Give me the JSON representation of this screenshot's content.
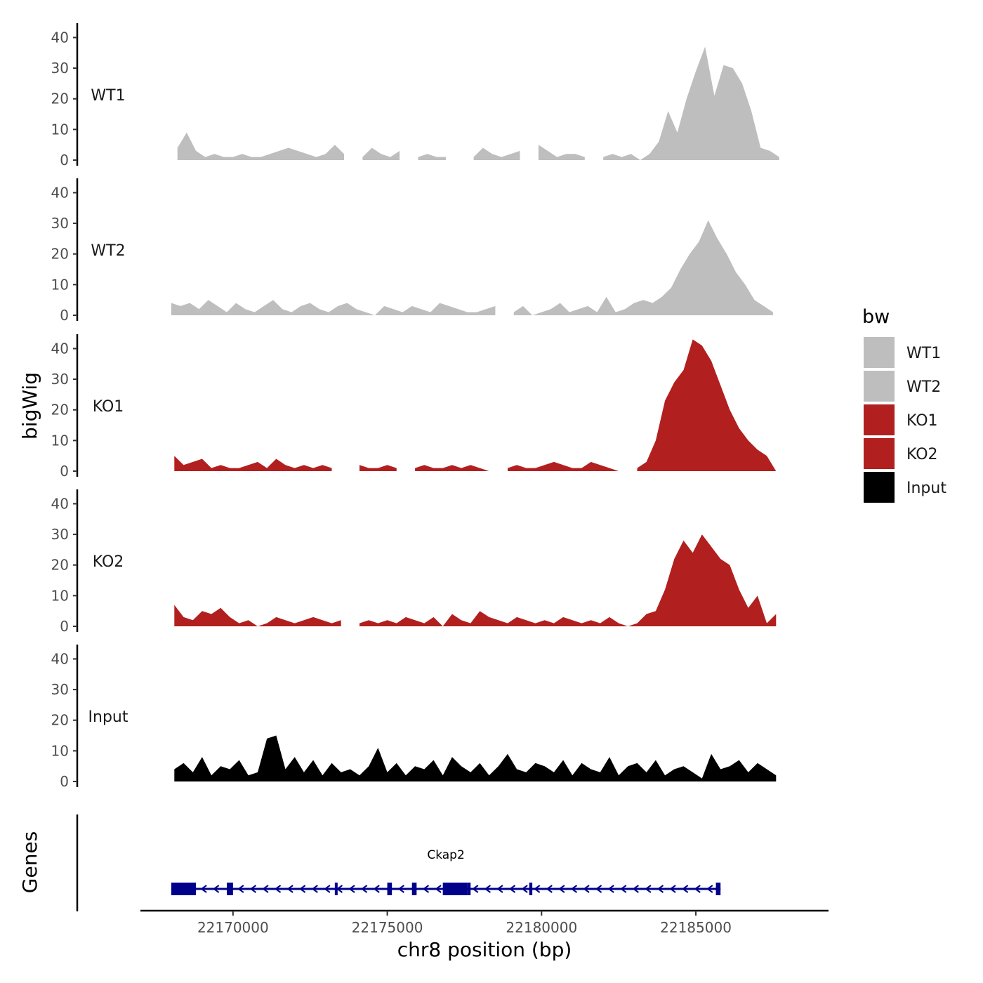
{
  "chart_data": {
    "type": "area",
    "title": "",
    "xlabel": "chr8 position (bp)",
    "ylabel": "bigWig",
    "genes_label": "Genes",
    "xlim": [
      22167000,
      22189300
    ],
    "x_ticks": [
      22170000,
      22175000,
      22180000,
      22185000
    ],
    "ylim": [
      0,
      44
    ],
    "y_ticks": [
      0,
      10,
      20,
      30,
      40
    ],
    "legend": {
      "title": "bw",
      "entries": [
        {
          "label": "WT1",
          "color": "#bebebe"
        },
        {
          "label": "WT2",
          "color": "#bebebe"
        },
        {
          "label": "KO1",
          "color": "#b21f1f"
        },
        {
          "label": "KO2",
          "color": "#b21f1f"
        },
        {
          "label": "Input",
          "color": "#000000"
        }
      ]
    },
    "tracks": [
      {
        "name": "WT1",
        "color": "#bebebe",
        "x": [
          22168200,
          22168500,
          22168800,
          22169100,
          22169400,
          22169700,
          22170000,
          22170300,
          22170600,
          22170900,
          22171200,
          22171500,
          22171800,
          22172100,
          22172400,
          22172700,
          22173000,
          22173300,
          22173600,
          22173900,
          22174200,
          22174500,
          22174800,
          22175100,
          22175400,
          22175700,
          22176000,
          22176300,
          22176600,
          22176900,
          22177200,
          22177500,
          22177800,
          22178100,
          22178400,
          22178700,
          22179000,
          22179300,
          22179600,
          22179900,
          22180200,
          22180500,
          22180800,
          22181100,
          22181400,
          22181700,
          22182000,
          22182300,
          22182600,
          22182900,
          22183200,
          22183500,
          22183800,
          22184100,
          22184400,
          22184700,
          22185000,
          22185300,
          22185600,
          22185900,
          22186200,
          22186500,
          22186800,
          22187100,
          22187400,
          22187700
        ],
        "values": [
          4,
          9,
          3,
          1,
          2,
          1,
          1,
          2,
          1,
          1,
          2,
          3,
          4,
          3,
          2,
          1,
          2,
          5,
          2,
          null,
          1,
          4,
          2,
          1,
          3,
          null,
          1,
          2,
          1,
          1,
          null,
          null,
          1,
          4,
          2,
          1,
          2,
          3,
          null,
          5,
          3,
          1,
          2,
          2,
          1,
          null,
          1,
          2,
          1,
          2,
          0,
          2,
          6,
          16,
          9,
          20,
          29,
          37,
          21,
          31,
          30,
          25,
          16,
          4,
          3,
          1
        ],
        "gaps": [
          [
            22173750,
            22174300
          ],
          [
            22175650,
            22176050
          ],
          [
            22177100,
            22177700
          ],
          [
            22179400,
            22179600
          ],
          [
            22181600,
            22181800
          ],
          [
            22183150,
            22183300
          ]
        ]
      },
      {
        "name": "WT2",
        "color": "#bebebe",
        "x": [
          22168000,
          22168300,
          22168600,
          22168900,
          22169200,
          22169500,
          22169800,
          22170100,
          22170400,
          22170700,
          22171000,
          22171300,
          22171600,
          22171900,
          22172200,
          22172500,
          22172800,
          22173100,
          22173400,
          22173700,
          22174000,
          22174300,
          22174600,
          22174900,
          22175200,
          22175500,
          22175800,
          22176100,
          22176400,
          22176700,
          22177000,
          22177300,
          22177600,
          22177900,
          22178200,
          22178500,
          22178800,
          22179100,
          22179400,
          22179700,
          22180000,
          22180300,
          22180600,
          22180900,
          22181200,
          22181500,
          22181800,
          22182100,
          22182400,
          22182700,
          22183000,
          22183300,
          22183600,
          22183900,
          22184200,
          22184500,
          22184800,
          22185100,
          22185400,
          22185700,
          22186000,
          22186300,
          22186600,
          22186900,
          22187200,
          22187500
        ],
        "values": [
          4,
          3,
          4,
          2,
          5,
          3,
          1,
          4,
          2,
          1,
          3,
          5,
          2,
          1,
          3,
          4,
          2,
          1,
          3,
          4,
          2,
          1,
          0,
          3,
          2,
          1,
          3,
          2,
          1,
          4,
          3,
          2,
          1,
          1,
          2,
          3,
          null,
          1,
          3,
          0,
          1,
          2,
          4,
          1,
          2,
          3,
          1,
          6,
          1,
          2,
          4,
          5,
          4,
          6,
          9,
          15,
          20,
          24,
          31,
          25,
          20,
          14,
          10,
          5,
          3,
          1
        ],
        "gaps": [
          [
            22178650,
            22179050
          ],
          [
            22180300,
            22180500
          ]
        ]
      },
      {
        "name": "KO1",
        "color": "#b21f1f",
        "x": [
          22168100,
          22168400,
          22168700,
          22169000,
          22169300,
          22169600,
          22169900,
          22170200,
          22170500,
          22170800,
          22171100,
          22171400,
          22171700,
          22172000,
          22172300,
          22172600,
          22172900,
          22173200,
          22173500,
          22173800,
          22174100,
          22174400,
          22174700,
          22175000,
          22175300,
          22175600,
          22175900,
          22176200,
          22176500,
          22176800,
          22177100,
          22177400,
          22177700,
          22178000,
          22178300,
          22178600,
          22178900,
          22179200,
          22179500,
          22179800,
          22180100,
          22180400,
          22180700,
          22181000,
          22181300,
          22181600,
          22181900,
          22182200,
          22182500,
          22182800,
          22183100,
          22183400,
          22183700,
          22184000,
          22184300,
          22184600,
          22184900,
          22185200,
          22185500,
          22185800,
          22186100,
          22186400,
          22186700,
          22187000,
          22187300,
          22187600
        ],
        "values": [
          5,
          2,
          3,
          4,
          1,
          2,
          1,
          1,
          2,
          3,
          1,
          4,
          2,
          1,
          2,
          1,
          2,
          1,
          null,
          null,
          2,
          1,
          1,
          2,
          1,
          null,
          1,
          2,
          1,
          1,
          2,
          1,
          2,
          1,
          0,
          null,
          1,
          2,
          1,
          1,
          2,
          3,
          2,
          1,
          1,
          3,
          2,
          1,
          0,
          null,
          1,
          3,
          10,
          23,
          29,
          33,
          43,
          41,
          36,
          28,
          20,
          14,
          10,
          7,
          5,
          0
        ],
        "gaps": [
          [
            22173550,
            22174250
          ],
          [
            22175450,
            22175850
          ],
          [
            22178450,
            22178800
          ],
          [
            22182700,
            22183050
          ]
        ]
      },
      {
        "name": "KO2",
        "color": "#b21f1f",
        "x": [
          22168100,
          22168400,
          22168700,
          22169000,
          22169300,
          22169600,
          22169900,
          22170200,
          22170500,
          22170800,
          22171100,
          22171400,
          22171700,
          22172000,
          22172300,
          22172600,
          22172900,
          22173200,
          22173500,
          22173800,
          22174100,
          22174400,
          22174700,
          22175000,
          22175300,
          22175600,
          22175900,
          22176200,
          22176500,
          22176800,
          22177100,
          22177400,
          22177700,
          22178000,
          22178300,
          22178600,
          22178900,
          22179200,
          22179500,
          22179800,
          22180100,
          22180400,
          22180700,
          22181000,
          22181300,
          22181600,
          22181900,
          22182200,
          22182500,
          22182800,
          22183100,
          22183400,
          22183700,
          22184000,
          22184300,
          22184600,
          22184900,
          22185200,
          22185500,
          22185800,
          22186100,
          22186400,
          22186700,
          22187000,
          22187300,
          22187600
        ],
        "values": [
          7,
          3,
          2,
          5,
          4,
          6,
          3,
          1,
          2,
          0,
          1,
          3,
          2,
          1,
          2,
          3,
          2,
          1,
          2,
          null,
          1,
          2,
          1,
          2,
          1,
          3,
          2,
          1,
          3,
          0,
          4,
          2,
          1,
          5,
          3,
          2,
          1,
          3,
          2,
          1,
          2,
          1,
          3,
          2,
          1,
          2,
          1,
          3,
          1,
          0,
          1,
          4,
          5,
          12,
          22,
          28,
          24,
          30,
          26,
          22,
          20,
          12,
          6,
          10,
          1,
          4
        ],
        "gaps": [
          [
            22173650,
            22174000
          ],
          [
            22182650,
            22182900
          ]
        ]
      },
      {
        "name": "Input",
        "color": "#000000",
        "x": [
          22168100,
          22168400,
          22168700,
          22169000,
          22169300,
          22169600,
          22169900,
          22170200,
          22170500,
          22170800,
          22171100,
          22171400,
          22171700,
          22172000,
          22172300,
          22172600,
          22172900,
          22173200,
          22173500,
          22173800,
          22174100,
          22174400,
          22174700,
          22175000,
          22175300,
          22175600,
          22175900,
          22176200,
          22176500,
          22176800,
          22177100,
          22177400,
          22177700,
          22178000,
          22178300,
          22178600,
          22178900,
          22179200,
          22179500,
          22179800,
          22180100,
          22180400,
          22180700,
          22181000,
          22181300,
          22181600,
          22181900,
          22182200,
          22182500,
          22182800,
          22183100,
          22183400,
          22183700,
          22184000,
          22184300,
          22184600,
          22184900,
          22185200,
          22185500,
          22185800,
          22186100,
          22186400,
          22186700,
          22187000,
          22187300,
          22187600
        ],
        "values": [
          4,
          6,
          3,
          8,
          2,
          5,
          4,
          7,
          2,
          3,
          14,
          15,
          4,
          8,
          3,
          7,
          2,
          6,
          3,
          4,
          2,
          5,
          11,
          3,
          6,
          2,
          5,
          4,
          7,
          2,
          8,
          5,
          3,
          6,
          2,
          5,
          9,
          4,
          3,
          6,
          5,
          3,
          7,
          2,
          6,
          4,
          3,
          8,
          2,
          5,
          6,
          3,
          7,
          2,
          4,
          5,
          3,
          1,
          9,
          4,
          5,
          7,
          3,
          6,
          4,
          2
        ],
        "gaps": []
      }
    ],
    "genes": [
      {
        "name": "Ckap2",
        "color": "#00008b",
        "strand": "-",
        "start": 22168000,
        "end": 22185800,
        "exons": [
          [
            22168000,
            22168800
          ],
          [
            22169800,
            22170000
          ],
          [
            22173300,
            22173350
          ],
          [
            22175000,
            22175150
          ],
          [
            22175800,
            22175950
          ],
          [
            22176800,
            22177600
          ],
          [
            22177600,
            22177700
          ],
          [
            22179600,
            22179700
          ],
          [
            22185650,
            22185800
          ]
        ]
      }
    ]
  }
}
